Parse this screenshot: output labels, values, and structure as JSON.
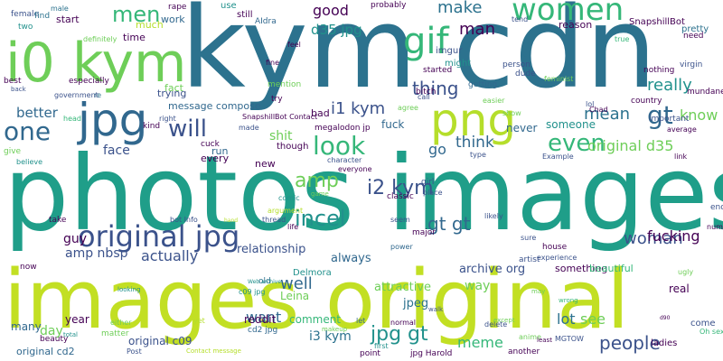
{
  "palette": {
    "background": "#ffffff",
    "purple": "#440154",
    "indigo": "#3b528b",
    "blue": "#31688e",
    "teal": "#21918c",
    "teal2": "#2c728e",
    "green": "#1f9e89",
    "seafoam": "#35b779",
    "lime": "#6ece58",
    "yellowgreen": "#b5de2b",
    "yellow": "#c2df23"
  },
  "words": [
    "kym cdn",
    "photos images",
    "images original",
    "i0 kym",
    "jpg",
    "png",
    "gif",
    "women",
    "original jpg",
    "incel",
    "look",
    "even",
    "gt",
    "one",
    "will",
    "men",
    "thing",
    "i1 kym",
    "amp",
    "i2 kym",
    "gt gt",
    "jpg gt",
    "people",
    "woman",
    "meme",
    "original d35",
    "mean",
    "make",
    "really",
    "good",
    "d35 jpg",
    "man",
    "know",
    "think",
    "actually",
    "well",
    "lot",
    "want",
    "see",
    "amp nbsp",
    "fucking",
    "go",
    "way",
    "better",
    "shit",
    "face",
    "guy",
    "archive org",
    "relationship",
    "always",
    "attractive",
    "jpeg",
    "i3 kym",
    "year",
    "day",
    "comment",
    "original c09",
    "original cd2",
    "many",
    "reddit",
    "Leina",
    "Delmora",
    "message compose",
    "something",
    "beautiful",
    "real",
    "fuck",
    "imgur",
    "might",
    "never",
    "someone",
    "trying",
    "work",
    "much",
    "time",
    "start",
    "female",
    "find",
    "two",
    "male",
    "definitely",
    "rape",
    "use",
    "still",
    "AIdra",
    "probably",
    "tend",
    "SnapshillBot",
    "pretty",
    "need",
    "reason",
    "true",
    "virgin",
    "mundane",
    "country",
    "Chad",
    "average",
    "important",
    "lol",
    "feminist",
    "nothing",
    "u",
    "person",
    "dude",
    "started",
    "bitch",
    "call",
    "easier",
    "show",
    "agree",
    "getting",
    "feel",
    "fine",
    "mention",
    "try",
    "fact",
    "re",
    "government",
    "best",
    "especially",
    "back",
    "head",
    "give",
    "believe",
    "SnapshillBot Contact",
    "made",
    "kind",
    "right",
    "run",
    "every",
    "cuck",
    "megalodon jp",
    "character",
    "everyone",
    "type",
    "classic",
    "girl",
    "place",
    "game",
    "comic",
    "likely",
    "seem",
    "thread",
    "argument",
    "life",
    "bot Info",
    "take",
    "now",
    "hand",
    "major",
    "sure",
    "house",
    "experience",
    "artist",
    "ugly",
    "number",
    "end",
    "link",
    "Example",
    "new",
    "though",
    "old",
    "cd2 jpg",
    "c09 jpg",
    "Web archive",
    "makeup",
    "beauty",
    "looking",
    "total",
    "either",
    "yet",
    "matter",
    "Post",
    "Contact message",
    "jpg Harold",
    "first",
    "point",
    "let",
    "normal",
    "delete",
    "anime",
    "another",
    "MGTOW",
    "least",
    "d90",
    "come",
    "Oh sex",
    "ladies",
    "except",
    "walk",
    "may",
    "wrong",
    "power",
    "bad",
    "say"
  ]
}
